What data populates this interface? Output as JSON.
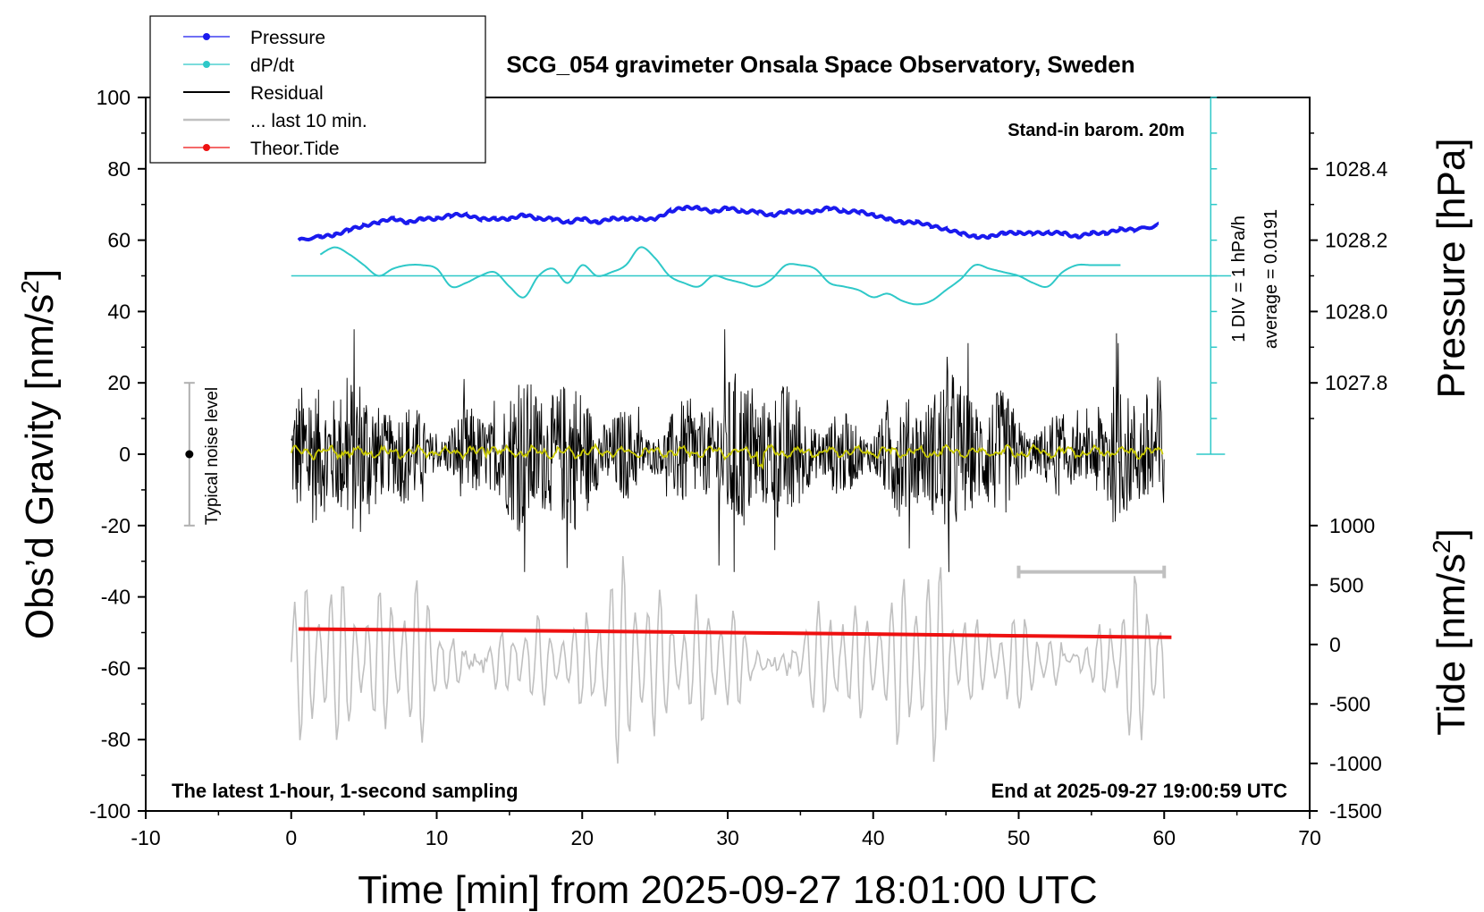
{
  "chart_data": {
    "type": "line",
    "title": "SCG_054 gravimeter Onsala Space Observatory, Sweden",
    "xlabel": "Time [min] from 2025-09-27 18:01:00 UTC",
    "ylabel_left_pre": "Obs’d Gravity [nm/s",
    "ylabel_left_sup": "2",
    "ylabel_left_post": "]",
    "ylabel_right_top": "Pressure [hPa]",
    "ylabel_right_bottom_pre": "Tide [nm/s",
    "ylabel_right_bottom_sup": "2",
    "ylabel_right_bottom_post": "]",
    "xlim": [
      -10,
      70
    ],
    "ylim": [
      -100,
      100
    ],
    "xticks": [
      "-10",
      "0",
      "10",
      "20",
      "30",
      "40",
      "50",
      "60",
      "70"
    ],
    "yticks_left": [
      "100",
      "80",
      "60",
      "40",
      "20",
      "0",
      "-20",
      "-40",
      "-60",
      "-80",
      "-100"
    ],
    "pressure_axis": {
      "ticks": [
        "1028.4",
        "1028.2",
        "1028.0",
        "1027.8"
      ],
      "values": [
        1028.4,
        1028.2,
        1028.0,
        1027.8
      ],
      "gravity_equiv": [
        80,
        60,
        40,
        20
      ]
    },
    "tide_axis": {
      "ticks": [
        "1000",
        "500",
        "0",
        "-500",
        "-1000",
        "-1500"
      ],
      "values": [
        1000,
        500,
        0,
        -500,
        -1000,
        -1500
      ],
      "gravity_equiv": [
        -20,
        -36.67,
        -53.33,
        -70,
        -86.67,
        -100
      ]
    },
    "annotations": {
      "stand_in": "Stand-in barom. 20m",
      "latest": "The latest 1-hour, 1-second sampling",
      "end_at": "End at 2025-09-27 19:00:59 UTC",
      "div_scale": "1 DIV = 1 hPa/h",
      "average": "average = 0.0191",
      "noise_level": "Typical noise level"
    },
    "legend": {
      "position": "top-left",
      "entries": [
        {
          "label": "Pressure",
          "color": "#1a1aee"
        },
        {
          "label": "dP/dt",
          "color": "#2ec8c8"
        },
        {
          "label": "Residual",
          "color": "#000000"
        },
        {
          "label": "... last 10 min.",
          "color": "#c0c0c0"
        },
        {
          "label": "Theor.Tide",
          "color": "#ee1111"
        }
      ]
    },
    "series": [
      {
        "name": "Pressure",
        "color": "#1a1aee",
        "x": [
          0.5,
          2,
          3,
          4,
          5,
          6,
          7,
          8,
          9,
          10,
          11,
          12,
          13,
          14,
          15,
          16,
          17,
          18,
          19,
          20,
          21,
          22,
          23,
          24,
          25,
          26,
          27,
          28,
          29,
          30,
          31,
          32,
          33,
          34,
          35,
          36,
          37,
          38,
          39,
          40,
          41,
          42,
          43,
          44,
          45,
          46,
          47,
          48,
          49,
          50,
          51,
          52,
          53,
          54,
          55,
          56,
          57,
          58,
          59.5
        ],
        "y": [
          60,
          61,
          61.5,
          63,
          64,
          65,
          66,
          65,
          66,
          66,
          67,
          67,
          66,
          66,
          66,
          67,
          66,
          66,
          65,
          66,
          65,
          66,
          66,
          66,
          66,
          68,
          69,
          69,
          68,
          69,
          68,
          68,
          67,
          68,
          68,
          68,
          69,
          68,
          68,
          67,
          66,
          65,
          65,
          64,
          63,
          62,
          61,
          61,
          62,
          62,
          62,
          62,
          62,
          61,
          62,
          62,
          63,
          63,
          64
        ]
      },
      {
        "name": "dP/dt",
        "color": "#2ec8c8",
        "x": [
          2,
          3,
          4,
          5,
          6,
          7,
          8,
          9,
          10,
          11,
          12,
          13,
          14,
          15,
          16,
          17,
          18,
          19,
          20,
          21,
          22,
          23,
          24,
          25,
          26,
          27,
          28,
          29,
          30,
          31,
          32,
          33,
          34,
          35,
          36,
          37,
          38,
          39,
          40,
          41,
          42,
          43,
          44,
          45,
          46,
          47,
          48,
          49,
          50,
          51,
          52,
          53,
          54,
          55,
          56,
          57
        ],
        "y": [
          56,
          58,
          56,
          53,
          50,
          52,
          53,
          53,
          52,
          47,
          48,
          50,
          51,
          47,
          44,
          50,
          52,
          48,
          53,
          50,
          51,
          53,
          58,
          55,
          50,
          48,
          47,
          50,
          49,
          48,
          47,
          49,
          53,
          53,
          52,
          48,
          47,
          46,
          44,
          45,
          43,
          42,
          43,
          46,
          49,
          53,
          52,
          51,
          50,
          48,
          47,
          51,
          53,
          53,
          53,
          53
        ]
      },
      {
        "name": "Residual",
        "color": "#000000",
        "envelope": [
          -35,
          35
        ],
        "mean": 0
      },
      {
        "name": "... last 10 min.",
        "color": "#c0c0c0",
        "center": -60,
        "envelope": [
          -92,
          -27
        ]
      },
      {
        "name": "Theor.Tide",
        "color": "#ee1111",
        "x": [
          0.5,
          10,
          20,
          30,
          40,
          50,
          60.5
        ],
        "y": [
          -49,
          -49.3,
          -49.6,
          -50,
          -50.4,
          -50.9,
          -51.3
        ]
      }
    ]
  }
}
